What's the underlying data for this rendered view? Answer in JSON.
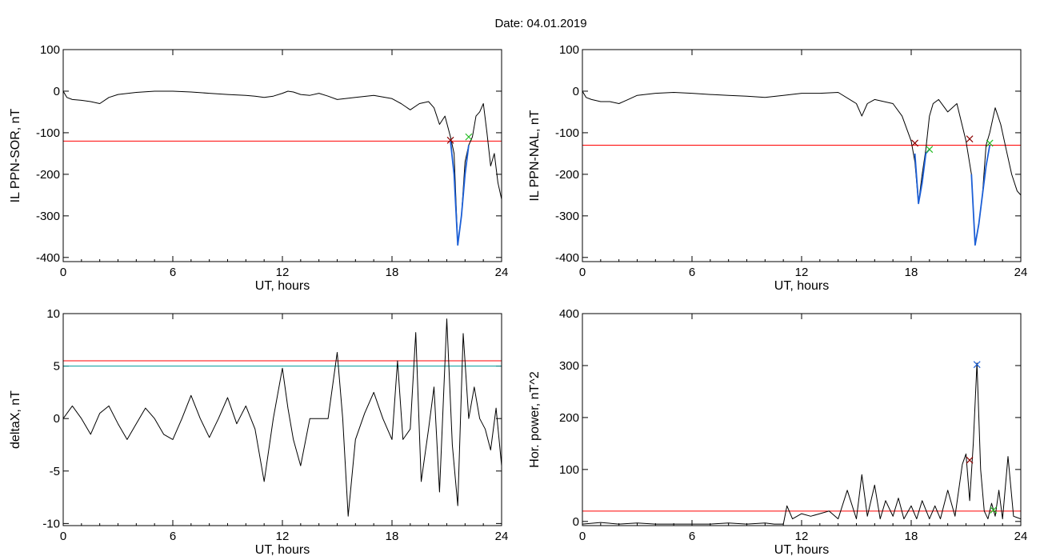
{
  "figure": {
    "title": "Date:  04.01.2019"
  },
  "chart_data": [
    {
      "id": "p1",
      "type": "line",
      "xlabel": "UT, hours",
      "ylabel": "IL PPN-SOR, nT",
      "xlim": [
        0,
        24
      ],
      "ylim": [
        -410,
        100
      ],
      "xticks": [
        0,
        6,
        12,
        18,
        24
      ],
      "yticks": [
        100,
        0,
        -100,
        -200,
        -300,
        -400
      ],
      "series": [
        {
          "color": "#000000",
          "x": [
            0,
            0.2,
            0.5,
            1.0,
            1.5,
            2.0,
            2.5,
            3.0,
            4.0,
            5.0,
            6.0,
            7.0,
            8.0,
            9.0,
            10.0,
            10.5,
            11.0,
            11.5,
            12.0,
            12.3,
            12.6,
            13.0,
            13.5,
            14.0,
            14.5,
            15.0,
            16.0,
            17.0,
            18.0,
            18.5,
            19.0,
            19.5,
            20.0,
            20.3,
            20.6,
            20.9,
            21.2,
            21.4,
            21.6,
            21.8,
            22.0,
            22.2,
            22.4,
            22.6,
            22.8,
            23.0,
            23.2,
            23.4,
            23.6,
            23.8,
            24.0
          ],
          "y": [
            0,
            -15,
            -20,
            -22,
            -25,
            -30,
            -15,
            -8,
            -3,
            0,
            0,
            -2,
            -5,
            -8,
            -10,
            -12,
            -15,
            -12,
            -5,
            0,
            -2,
            -8,
            -10,
            -5,
            -12,
            -20,
            -15,
            -10,
            -18,
            -30,
            -45,
            -30,
            -25,
            -40,
            -80,
            -60,
            -110,
            -150,
            -370,
            -300,
            -170,
            -130,
            -110,
            -60,
            -50,
            -30,
            -100,
            -180,
            -150,
            -220,
            -260
          ]
        },
        {
          "color": "#1c5fd6",
          "x": [
            21.2,
            21.4,
            21.6,
            21.8,
            22.0,
            22.2
          ],
          "y": [
            -120,
            -200,
            -370,
            -300,
            -200,
            -130
          ]
        }
      ],
      "hlines": [
        {
          "y": -120,
          "color": "#ff0000"
        }
      ],
      "markers": [
        {
          "x": 21.2,
          "y": -118,
          "color": "#8b0000"
        },
        {
          "x": 22.2,
          "y": -110,
          "color": "#22bb22"
        }
      ]
    },
    {
      "id": "p2",
      "type": "line",
      "xlabel": "UT, hours",
      "ylabel": "IL PPN-NAL, nT",
      "xlim": [
        0,
        24
      ],
      "ylim": [
        -410,
        100
      ],
      "xticks": [
        0,
        6,
        12,
        18,
        24
      ],
      "yticks": [
        100,
        0,
        -100,
        -200,
        -300,
        -400
      ],
      "series": [
        {
          "color": "#000000",
          "x": [
            0,
            0.2,
            0.5,
            1.0,
            1.5,
            2.0,
            2.5,
            3.0,
            4.0,
            5.0,
            6.0,
            7.0,
            8.0,
            9.0,
            10.0,
            11.0,
            12.0,
            13.0,
            14.0,
            15.0,
            15.3,
            15.6,
            16.0,
            17.0,
            17.5,
            18.0,
            18.2,
            18.4,
            18.6,
            18.8,
            19.0,
            19.2,
            19.5,
            20.0,
            20.5,
            21.0,
            21.3,
            21.5,
            21.7,
            21.9,
            22.1,
            22.3,
            22.6,
            22.9,
            23.2,
            23.5,
            23.8,
            24.0
          ],
          "y": [
            0,
            -15,
            -20,
            -25,
            -25,
            -30,
            -20,
            -10,
            -5,
            -3,
            -5,
            -8,
            -10,
            -12,
            -15,
            -10,
            -5,
            -5,
            -3,
            -30,
            -60,
            -30,
            -20,
            -30,
            -60,
            -120,
            -170,
            -270,
            -200,
            -140,
            -60,
            -30,
            -20,
            -50,
            -30,
            -120,
            -200,
            -370,
            -320,
            -250,
            -130,
            -100,
            -40,
            -80,
            -140,
            -200,
            -240,
            -250
          ]
        },
        {
          "color": "#1c5fd6",
          "x": [
            18.2,
            18.4,
            18.6,
            18.8,
            19.0
          ],
          "y": [
            -150,
            -270,
            -220,
            -150,
            -140
          ]
        },
        {
          "color": "#1c5fd6",
          "x": [
            21.3,
            21.5,
            21.7,
            21.9,
            22.1,
            22.3
          ],
          "y": [
            -200,
            -370,
            -320,
            -250,
            -180,
            -130
          ]
        }
      ],
      "hlines": [
        {
          "y": -130,
          "color": "#ff0000"
        }
      ],
      "markers": [
        {
          "x": 18.2,
          "y": -125,
          "color": "#8b0000"
        },
        {
          "x": 19.0,
          "y": -140,
          "color": "#22bb22"
        },
        {
          "x": 21.2,
          "y": -115,
          "color": "#8b0000"
        },
        {
          "x": 22.3,
          "y": -125,
          "color": "#22bb22"
        }
      ]
    },
    {
      "id": "p3",
      "type": "line",
      "xlabel": "UT, hours",
      "ylabel": "deltaX, nT",
      "xlim": [
        0,
        24
      ],
      "ylim": [
        -10.2,
        10
      ],
      "xticks": [
        0,
        6,
        12,
        18,
        24
      ],
      "yticks": [
        10,
        5,
        0,
        -5,
        -10
      ],
      "series": [
        {
          "color": "#000000",
          "x": [
            0,
            0.5,
            1.0,
            1.5,
            2.0,
            2.5,
            3.0,
            3.5,
            4.0,
            4.5,
            5.0,
            5.5,
            6.0,
            6.5,
            7.0,
            7.5,
            8.0,
            8.5,
            9.0,
            9.5,
            10.0,
            10.5,
            11.0,
            11.5,
            12.0,
            12.3,
            12.6,
            13.0,
            13.5,
            14.0,
            14.5,
            15.0,
            15.3,
            15.6,
            16.0,
            16.5,
            17.0,
            17.5,
            18.0,
            18.3,
            18.6,
            19.0,
            19.3,
            19.6,
            20.0,
            20.3,
            20.6,
            21.0,
            21.3,
            21.6,
            21.9,
            22.2,
            22.5,
            22.8,
            23.1,
            23.4,
            23.7,
            24.0
          ],
          "y": [
            0,
            1.2,
            0,
            -1.5,
            0.5,
            1.2,
            -0.5,
            -2.0,
            -0.5,
            1.0,
            0,
            -1.5,
            -2.0,
            0,
            2.2,
            0,
            -1.8,
            0,
            2.0,
            -0.5,
            1.2,
            -1.0,
            -6.0,
            0,
            4.8,
            1.0,
            -2.0,
            -4.5,
            0,
            0,
            0,
            6.3,
            0,
            -9.3,
            -2.0,
            0.5,
            2.5,
            0,
            -2.0,
            5.5,
            -2.0,
            -1.0,
            8.2,
            -6.0,
            -1.0,
            3.0,
            -7.0,
            9.5,
            -2.5,
            -8.3,
            8.1,
            0,
            3.0,
            0,
            -1.0,
            -3.0,
            1.0,
            -4.5
          ]
        }
      ],
      "hlines": [
        {
          "y": 5.5,
          "color": "#ff0000"
        },
        {
          "y": 5.0,
          "color": "#009999"
        }
      ],
      "markers": []
    },
    {
      "id": "p4",
      "type": "line",
      "xlabel": "UT, hours",
      "ylabel": "Hor. power, nT^2",
      "xlim": [
        0,
        24
      ],
      "ylim": [
        -8,
        400
      ],
      "xticks": [
        0,
        6,
        12,
        18,
        24
      ],
      "yticks": [
        400,
        300,
        200,
        100,
        0
      ],
      "series": [
        {
          "color": "#000000",
          "x": [
            0,
            1,
            2,
            3,
            4,
            5,
            6,
            7,
            8,
            9,
            10,
            10.5,
            11.0,
            11.2,
            11.5,
            12.0,
            12.5,
            13.0,
            13.5,
            14.0,
            14.5,
            15.0,
            15.3,
            15.6,
            16.0,
            16.3,
            16.6,
            17.0,
            17.3,
            17.6,
            18.0,
            18.3,
            18.6,
            19.0,
            19.3,
            19.6,
            20.0,
            20.4,
            20.8,
            21.0,
            21.2,
            21.4,
            21.6,
            21.8,
            22.0,
            22.2,
            22.4,
            22.6,
            22.8,
            23.0,
            23.3,
            23.6,
            24.0
          ],
          "y": [
            -5,
            -2,
            -5,
            -3,
            -5,
            -5,
            -5,
            -5,
            -3,
            -5,
            -3,
            -5,
            -5,
            30,
            5,
            15,
            10,
            15,
            20,
            5,
            60,
            5,
            90,
            10,
            70,
            5,
            40,
            10,
            45,
            5,
            30,
            5,
            40,
            5,
            30,
            5,
            60,
            10,
            110,
            130,
            40,
            150,
            305,
            100,
            20,
            5,
            35,
            10,
            60,
            5,
            125,
            10,
            5
          ]
        }
      ],
      "hlines": [
        {
          "y": 20,
          "color": "#ff0000"
        }
      ],
      "markers": [
        {
          "x": 21.2,
          "y": 118,
          "color": "#8b0000"
        },
        {
          "x": 21.6,
          "y": 302,
          "color": "#1c5fd6"
        },
        {
          "x": 22.5,
          "y": 22,
          "color": "#22bb22"
        }
      ]
    }
  ]
}
